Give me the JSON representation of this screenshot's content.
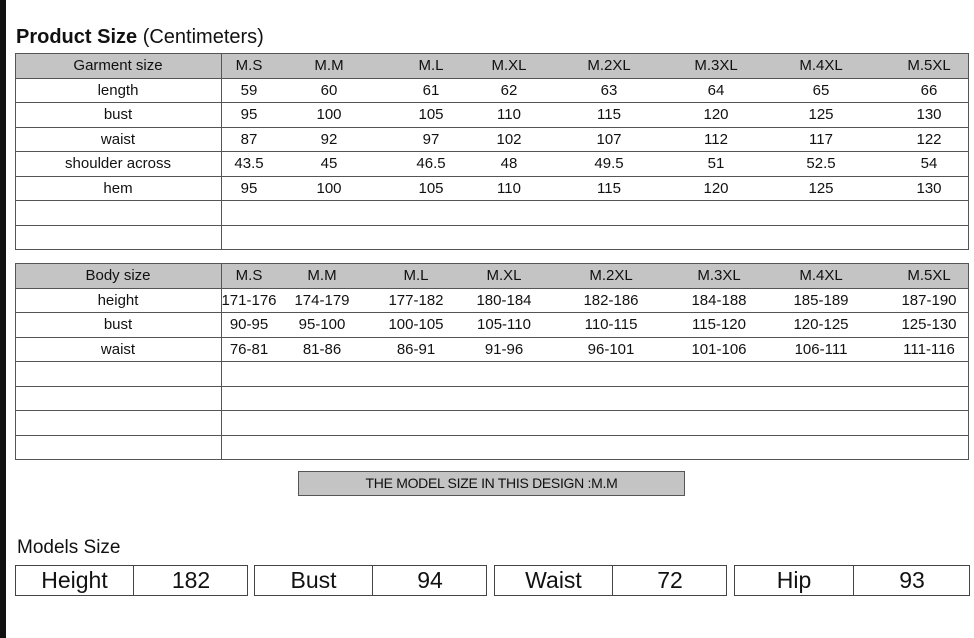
{
  "title_bold": "Product Size",
  "title_unit": "(Centimeters)",
  "garment_table": {
    "header": [
      "Garment size",
      "M.S",
      "M.M",
      "M.L",
      "M.XL",
      "M.2XL",
      "M.3XL",
      "M.4XL",
      "M.5XL"
    ],
    "rows": [
      [
        "length",
        "59",
        "60",
        "61",
        "62",
        "63",
        "64",
        "65",
        "66"
      ],
      [
        "bust",
        "95",
        "100",
        "105",
        "110",
        "115",
        "120",
        "125",
        "130"
      ],
      [
        "waist",
        "87",
        "92",
        "97",
        "102",
        "107",
        "112",
        "117",
        "122"
      ],
      [
        "shoulder across",
        "43.5",
        "45",
        "46.5",
        "48",
        "49.5",
        "51",
        "52.5",
        "54"
      ],
      [
        "hem",
        "95",
        "100",
        "105",
        "110",
        "115",
        "120",
        "125",
        "130"
      ],
      [],
      []
    ]
  },
  "body_table": {
    "header": [
      "Body size",
      "M.S",
      "M.M",
      "M.L",
      "M.XL",
      "M.2XL",
      "M.3XL",
      "M.4XL",
      "M.5XL"
    ],
    "rows": [
      [
        "height",
        "171-176",
        "174-179",
        "177-182",
        "180-184",
        "182-186",
        "184-188",
        "185-189",
        "187-190"
      ],
      [
        "bust",
        "90-95",
        "95-100",
        "100-105",
        "105-110",
        "110-115",
        "115-120",
        "120-125",
        "125-130"
      ],
      [
        "waist",
        "76-81",
        "81-86",
        "86-91",
        "91-96",
        "96-101",
        "101-106",
        "106-111",
        "111-116"
      ],
      [],
      [],
      [],
      []
    ]
  },
  "banner": "THE MODEL SIZE IN THIS DESIGN :M.M",
  "models_label": "Models Size",
  "models": [
    {
      "label": "Height",
      "value": "182"
    },
    {
      "label": "Bust",
      "value": "94"
    },
    {
      "label": "Waist",
      "value": "72"
    },
    {
      "label": "Hip",
      "value": "93"
    }
  ]
}
